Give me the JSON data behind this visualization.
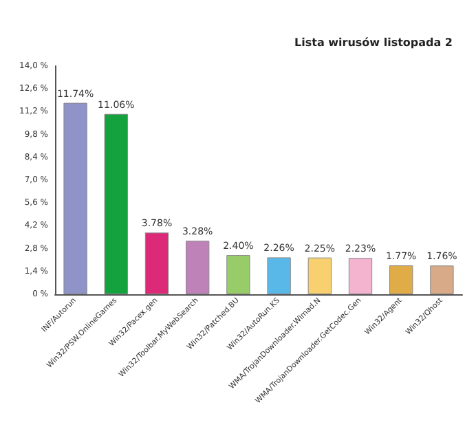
{
  "chart_data": {
    "type": "bar",
    "title": "Lista wirusów listopada 2",
    "categories": [
      "INF/Autorun",
      "Win32/PSW.OnlineGames",
      "Win32/Pacex.gen",
      "Win32/Toolbar.MyWebSearch",
      "Win32/Patched.BU",
      "Win32/AutoRun.KS",
      "WMA/TrojanDownloader.Wimad.N",
      "WMA/TrojanDownloader.GetCodec.Gen",
      "Win32/Agent",
      "Win32/Qhost"
    ],
    "values": [
      11.74,
      11.06,
      3.78,
      3.28,
      2.4,
      2.26,
      2.25,
      2.23,
      1.77,
      1.76
    ],
    "value_labels": [
      "11.74%",
      "11.06%",
      "3.78%",
      "3.28%",
      "2.40%",
      "2.26%",
      "2.25%",
      "2.23%",
      "1.77%",
      "1.76%"
    ],
    "colors": [
      "#8f93c8",
      "#14a23e",
      "#dc2a78",
      "#be82b9",
      "#98cc68",
      "#5ab8e8",
      "#f8d070",
      "#f4b4d0",
      "#e0ac48",
      "#d8aa88"
    ],
    "ylim": [
      0,
      14
    ],
    "yticks": [
      {
        "value": 0,
        "label": "0 %"
      },
      {
        "value": 1.4,
        "label": "1,4 %"
      },
      {
        "value": 2.8,
        "label": "2,8 %"
      },
      {
        "value": 4.2,
        "label": "4,2 %"
      },
      {
        "value": 5.6,
        "label": "5,6 %"
      },
      {
        "value": 7,
        "label": "7,0 %"
      },
      {
        "value": 8.4,
        "label": "8,4 %"
      },
      {
        "value": 9.8,
        "label": "9,8 %"
      },
      {
        "value": 11.2,
        "label": "11,2 %"
      },
      {
        "value": 12.6,
        "label": "12,6 %"
      },
      {
        "value": 14,
        "label": "14,0 %"
      }
    ],
    "grid": false
  }
}
